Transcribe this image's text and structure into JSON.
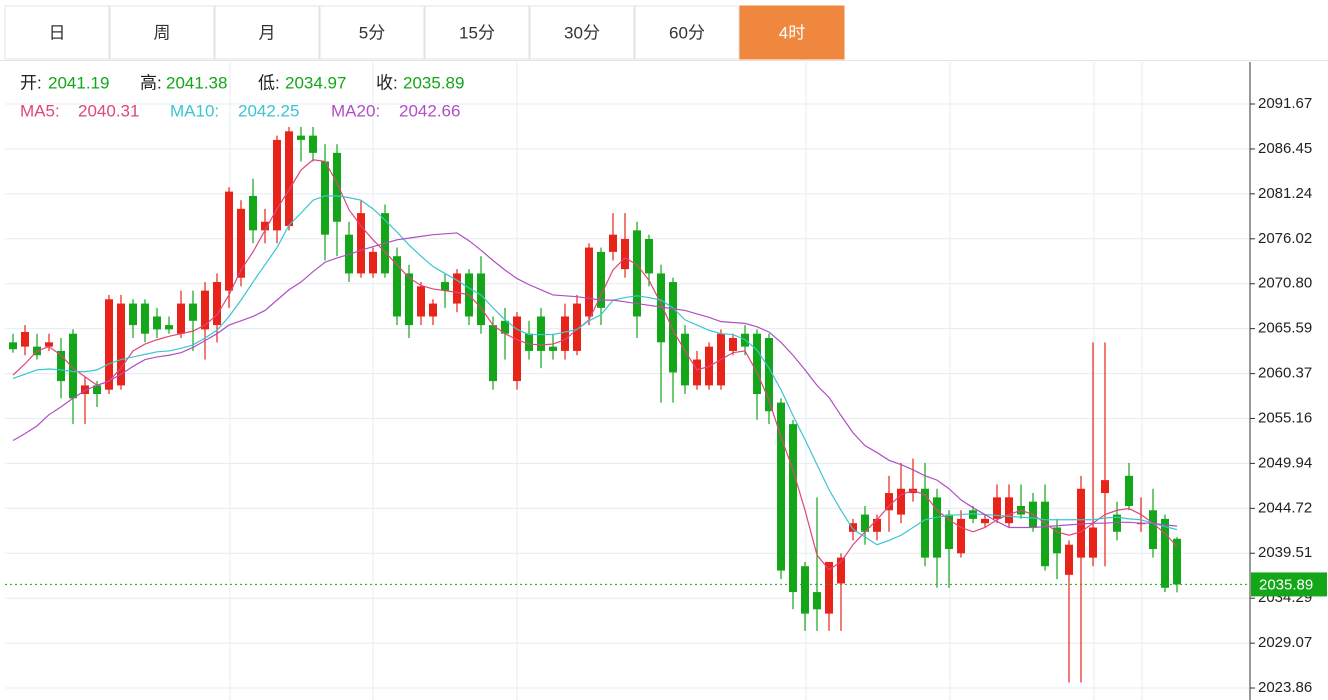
{
  "tabs": {
    "labels": [
      "日",
      "周",
      "月",
      "5分",
      "15分",
      "30分",
      "60分",
      "4时"
    ],
    "active": 7
  },
  "chart_data": {
    "type": "candlestick",
    "ohlc_info": [
      {
        "label": "开:",
        "value": 2041.19
      },
      {
        "label": "高:",
        "value": 2041.38
      },
      {
        "label": "低:",
        "value": 2034.97
      },
      {
        "label": "收:",
        "value": 2035.89
      }
    ],
    "up_color": "#e8231a",
    "down_color": "#13a619",
    "open": [
      2064.0,
      2063.5,
      2063.5,
      2063.5,
      2063.0,
      2065.0,
      2058.0,
      2059.0,
      2058.5,
      2059.0,
      2068.5,
      2068.5,
      2067.0,
      2066.0,
      2065.0,
      2068.5,
      2065.5,
      2066.0,
      2070.0,
      2071.5,
      2081.0,
      2077.0,
      2077.0,
      2077.5,
      2088.0,
      2088.0,
      2085.0,
      2086.0,
      2076.5,
      2072.0,
      2072.0,
      2079.0,
      2074.0,
      2072.0,
      2067.0,
      2067.0,
      2071.0,
      2068.5,
      2072.0,
      2072.0,
      2066.0,
      2066.5,
      2059.5,
      2065.0,
      2067.0,
      2063.5,
      2063.0,
      2063.0,
      2067.0,
      2074.5,
      2074.5,
      2072.5,
      2077.0,
      2076.0,
      2072.0,
      2071.0,
      2065.0,
      2059.0,
      2059.0,
      2059.0,
      2063.0,
      2065.0,
      2065.0,
      2064.5,
      2057.0,
      2054.5,
      2038.0,
      2035.0,
      2032.5,
      2036.0,
      2042.0,
      2044.0,
      2042.0,
      2044.5,
      2044.0,
      2046.5,
      2047.0,
      2046.0,
      2044.0,
      2039.5,
      2044.5,
      2043.0,
      2043.5,
      2043.0,
      2045.0,
      2045.5,
      2045.5,
      2042.5,
      2037.0,
      2039.0,
      2039.0,
      2046.5,
      2044.0,
      2048.5,
      2043.0,
      2044.5,
      2043.5,
      2041.19
    ],
    "high": [
      2065.0,
      2066.0,
      2065.0,
      2065.0,
      2064.5,
      2065.5,
      2060.0,
      2059.5,
      2069.5,
      2069.5,
      2069.0,
      2069.0,
      2068.0,
      2067.0,
      2070.0,
      2070.0,
      2071.0,
      2072.0,
      2082.0,
      2080.5,
      2083.0,
      2079.5,
      2088.0,
      2089.0,
      2089.0,
      2089.0,
      2087.0,
      2087.0,
      2078.0,
      2080.5,
      2075.0,
      2080.0,
      2075.0,
      2073.0,
      2071.0,
      2069.0,
      2072.0,
      2072.5,
      2072.5,
      2074.0,
      2067.0,
      2068.0,
      2067.5,
      2066.5,
      2068.0,
      2065.0,
      2068.5,
      2069.5,
      2075.5,
      2075.0,
      2079.0,
      2079.0,
      2078.0,
      2076.5,
      2073.0,
      2071.5,
      2066.0,
      2063.0,
      2064.0,
      2065.5,
      2065.0,
      2066.0,
      2065.5,
      2065.0,
      2057.5,
      2055.0,
      2038.5,
      2046.0,
      2038.5,
      2039.5,
      2043.5,
      2045.0,
      2044.0,
      2048.5,
      2050.0,
      2050.5,
      2050.0,
      2047.0,
      2044.5,
      2044.5,
      2045.0,
      2044.0,
      2047.5,
      2047.5,
      2047.5,
      2046.5,
      2047.5,
      2043.5,
      2041.0,
      2048.5,
      2064.0,
      2064.0,
      2045.5,
      2050.0,
      2046.0,
      2047.0,
      2044.0,
      2041.38
    ],
    "low": [
      2062.8,
      2062.5,
      2062.0,
      2063.0,
      2057.5,
      2054.5,
      2054.5,
      2056.5,
      2058.0,
      2058.5,
      2064.5,
      2064.0,
      2064.5,
      2065.0,
      2064.5,
      2063.0,
      2062.0,
      2064.0,
      2068.0,
      2070.5,
      2075.5,
      2075.5,
      2075.5,
      2077.0,
      2085.0,
      2085.0,
      2073.5,
      2074.0,
      2071.0,
      2071.5,
      2071.5,
      2071.5,
      2066.0,
      2064.5,
      2066.0,
      2066.0,
      2068.0,
      2067.5,
      2066.0,
      2065.0,
      2058.5,
      2062.0,
      2058.5,
      2062.0,
      2061.0,
      2062.0,
      2062.0,
      2062.5,
      2066.0,
      2066.0,
      2073.5,
      2071.5,
      2064.5,
      2070.5,
      2057.0,
      2057.0,
      2058.0,
      2058.5,
      2058.5,
      2058.5,
      2062.5,
      2062.5,
      2055.0,
      2054.5,
      2036.5,
      2033.0,
      2030.5,
      2030.5,
      2030.5,
      2030.5,
      2041.0,
      2040.5,
      2041.0,
      2042.0,
      2043.0,
      2045.5,
      2038.0,
      2035.5,
      2035.5,
      2039.0,
      2043.0,
      2042.5,
      2043.0,
      2042.5,
      2043.5,
      2042.0,
      2037.5,
      2036.5,
      2024.5,
      2024.5,
      2038.0,
      2038.0,
      2041.0,
      2044.5,
      2042.0,
      2039.0,
      2035.0,
      2034.97
    ],
    "close": [
      2063.2,
      2065.2,
      2062.5,
      2064.0,
      2059.5,
      2057.5,
      2059.0,
      2058.0,
      2069.0,
      2068.5,
      2066.0,
      2065.0,
      2065.5,
      2065.5,
      2068.5,
      2066.5,
      2070.0,
      2071.0,
      2081.5,
      2079.5,
      2077.0,
      2078.0,
      2087.5,
      2088.5,
      2087.5,
      2086.0,
      2076.5,
      2078.0,
      2072.0,
      2079.0,
      2074.5,
      2072.0,
      2067.0,
      2066.0,
      2070.5,
      2068.5,
      2070.0,
      2072.0,
      2067.0,
      2066.0,
      2059.5,
      2065.0,
      2067.0,
      2063.0,
      2063.0,
      2063.0,
      2067.0,
      2068.5,
      2075.0,
      2068.0,
      2076.5,
      2076.0,
      2067.0,
      2072.0,
      2064.0,
      2060.5,
      2059.0,
      2062.0,
      2063.5,
      2065.0,
      2064.5,
      2063.5,
      2058.0,
      2056.0,
      2037.5,
      2035.0,
      2032.5,
      2033.0,
      2038.5,
      2039.0,
      2043.0,
      2042.0,
      2043.5,
      2046.5,
      2047.0,
      2047.0,
      2039.0,
      2039.0,
      2040.0,
      2043.5,
      2043.5,
      2043.5,
      2046.0,
      2046.0,
      2044.0,
      2042.5,
      2038.0,
      2039.5,
      2040.5,
      2047.0,
      2042.5,
      2048.0,
      2042.0,
      2045.0,
      2043.0,
      2040.0,
      2035.5,
      2035.89
    ],
    "series": [
      {
        "name": "MA5:",
        "color": "#e0457b",
        "current": 2040.31,
        "values": [
          2060.2,
          2061.5,
          2063.0,
          2063.5,
          2062.5,
          2061.0,
          2060.0,
          2059.0,
          2059.5,
          2061.0,
          2063.0,
          2063.8,
          2064.3,
          2064.7,
          2065.0,
          2065.3,
          2066.0,
          2067.2,
          2069.5,
          2072.4,
          2074.5,
          2077.0,
          2079.5,
          2081.7,
          2084.0,
          2085.2,
          2085.0,
          2082.5,
          2079.4,
          2077.5,
          2075.9,
          2074.5,
          2073.0,
          2071.5,
          2070.6,
          2070.2,
          2070.0,
          2069.8,
          2069.5,
          2068.0,
          2066.0,
          2065.0,
          2064.3,
          2063.8,
          2063.7,
          2063.8,
          2064.3,
          2065.5,
          2066.6,
          2069.5,
          2072.4,
          2073.8,
          2073.0,
          2071.2,
          2068.5,
          2065.4,
          2063.0,
          2060.8,
          2061.2,
          2062.0,
          2062.8,
          2063.0,
          2060.5,
          2057.3,
          2053.0,
          2049.2,
          2044.5,
          2039.3,
          2037.6,
          2038.5,
          2040.5,
          2042.0,
          2043.4,
          2045.0,
          2046.3,
          2046.8,
          2046.3,
          2044.5,
          2043.4,
          2042.5,
          2042.0,
          2042.5,
          2043.4,
          2044.0,
          2044.5,
          2044.0,
          2043.0,
          2042.0,
          2041.6,
          2042.0,
          2043.0,
          2044.0,
          2044.5,
          2044.7,
          2044.0,
          2043.0,
          2041.8,
          2040.31
        ]
      },
      {
        "name": "MA10:",
        "color": "#3cc4d0",
        "current": 2042.25,
        "values": [
          2059.8,
          2060.3,
          2060.8,
          2060.9,
          2060.8,
          2060.6,
          2060.6,
          2060.8,
          2061.5,
          2062.0,
          2062.3,
          2062.6,
          2062.9,
          2063.0,
          2063.3,
          2063.7,
          2064.5,
          2065.4,
          2067.0,
          2068.9,
          2071.0,
          2073.0,
          2075.0,
          2077.6,
          2079.0,
          2080.5,
          2081.0,
          2081.0,
          2080.8,
          2080.5,
          2079.5,
          2078.2,
          2076.8,
          2075.3,
          2074.0,
          2072.8,
          2072.0,
          2071.2,
          2070.3,
          2069.5,
          2068.0,
          2066.6,
          2065.5,
          2064.9,
          2064.9,
          2064.9,
          2065.2,
          2065.5,
          2066.5,
          2067.2,
          2068.9,
          2069.2,
          2069.4,
          2069.2,
          2068.9,
          2068.0,
          2066.6,
          2066.0,
          2065.4,
          2065.0,
          2064.9,
          2064.3,
          2063.1,
          2061.0,
          2058.5,
          2055.5,
          2052.7,
          2049.8,
          2046.9,
          2044.5,
          2042.3,
          2041.4,
          2040.5,
          2041.0,
          2041.6,
          2042.5,
          2043.4,
          2043.7,
          2043.9,
          2044.0,
          2044.1,
          2044.0,
          2043.9,
          2043.8,
          2043.7,
          2043.6,
          2043.4,
          2043.4,
          2043.4,
          2043.4,
          2043.4,
          2043.6,
          2043.7,
          2043.5,
          2043.4,
          2043.0,
          2042.6,
          2042.25
        ]
      },
      {
        "name": "MA20:",
        "color": "#b04fc3",
        "current": 2042.66,
        "values": [
          2052.6,
          2053.4,
          2054.3,
          2055.6,
          2056.5,
          2057.5,
          2058.4,
          2059.0,
          2059.5,
          2060.3,
          2061.2,
          2062.0,
          2062.3,
          2062.5,
          2062.8,
          2063.4,
          2064.2,
          2065.0,
          2066.0,
          2066.5,
          2067.0,
          2067.7,
          2068.9,
          2070.1,
          2071.0,
          2072.2,
          2073.3,
          2073.8,
          2074.2,
          2074.7,
          2075.1,
          2075.5,
          2075.9,
          2076.1,
          2076.3,
          2076.5,
          2076.6,
          2076.7,
          2075.8,
          2074.7,
          2073.5,
          2072.4,
          2071.4,
          2070.7,
          2070.1,
          2069.5,
          2069.4,
          2069.3,
          2069.1,
          2068.9,
          2068.9,
          2068.7,
          2068.5,
          2068.3,
          2068.1,
          2067.9,
          2067.7,
          2067.3,
          2066.9,
          2066.4,
          2066.3,
          2066.2,
          2065.8,
          2065.2,
          2064.0,
          2062.5,
          2060.8,
          2059.0,
          2057.6,
          2055.5,
          2053.5,
          2052.0,
          2051.2,
          2050.3,
          2049.8,
          2049.2,
          2048.5,
          2048.0,
          2047.0,
          2045.7,
          2044.8,
          2044.0,
          2043.2,
          2042.5,
          2042.5,
          2042.5,
          2042.6,
          2042.7,
          2042.8,
          2042.9,
          2043.0,
          2043.0,
          2043.1,
          2043.1,
          2043.0,
          2043.0,
          2042.8,
          2042.66
        ]
      }
    ],
    "last_price": 2035.89,
    "ylim": [
      2022.47,
      2096.78
    ],
    "yticks": [
      2091.67,
      2086.45,
      2081.24,
      2076.02,
      {
        "value": 2070.8,
        "label": "2070.80"
      },
      2065.59,
      2060.37,
      2055.16,
      2049.94,
      2044.72,
      2039.51,
      2034.29,
      2029.07,
      2023.86
    ],
    "grid": true
  }
}
